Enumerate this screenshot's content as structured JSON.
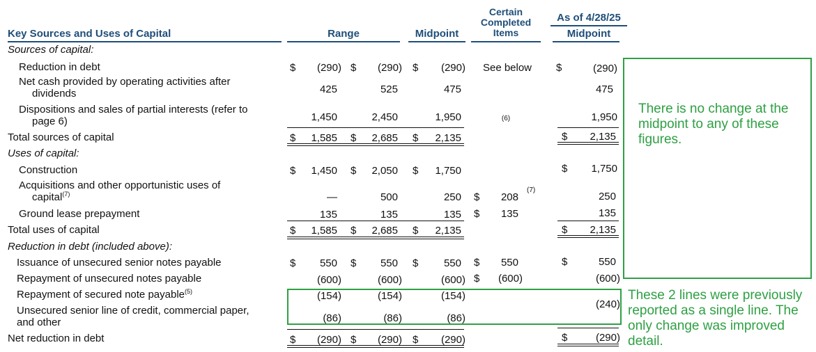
{
  "header": {
    "title": "Key Sources and Uses of Capital",
    "range": "Range",
    "midpoint": "Midpoint",
    "certain_l1": "Certain",
    "certain_l2": "Completed",
    "certain_l3": "Items",
    "asof": "As of 4/28/25",
    "asof_mid": "Midpoint"
  },
  "sections": {
    "sources": "Sources of capital:",
    "uses": "Uses of capital:",
    "reduction": "Reduction in debt (included above):"
  },
  "rows": {
    "red_debt": {
      "label": "Reduction in debt",
      "d1": "$",
      "low": "(290)",
      "d2": "$",
      "high": "(290)",
      "d3": "$",
      "mid": "(290)",
      "certain": "See below",
      "d5": "$",
      "asof": "(290)"
    },
    "net_cash": {
      "label1": "Net cash provided by operating activities after",
      "label2": "dividends",
      "low": "425",
      "high": "525",
      "mid": "475",
      "asof": "475"
    },
    "dispositions": {
      "label1": "Dispositions and sales of partial interests (refer to",
      "label2": "page 6)",
      "low": "1,450",
      "high": "2,450",
      "mid": "1,950",
      "certain_note": "(6)",
      "asof": "1,950"
    },
    "total_sources": {
      "label": "Total sources of capital",
      "d1": "$",
      "low": "1,585",
      "d2": "$",
      "high": "2,685",
      "d3": "$",
      "mid": "2,135",
      "d5": "$",
      "asof": "2,135"
    },
    "construction": {
      "label": "Construction",
      "d1": "$",
      "low": "1,450",
      "d2": "$",
      "high": "2,050",
      "d3": "$",
      "mid": "1,750",
      "d5": "$",
      "asof": "1,750"
    },
    "acquisitions": {
      "label1": "Acquisitions and other opportunistic uses of",
      "label2": "capital",
      "label_sup": "(7)",
      "low": "—",
      "high": "500",
      "mid": "250",
      "d4": "$",
      "certain": "208",
      "certain_sup": "(7)",
      "asof": "250"
    },
    "ground_lease": {
      "label": "Ground lease prepayment",
      "low": "135",
      "high": "135",
      "mid": "135",
      "d4": "$",
      "certain": "135",
      "asof": "135"
    },
    "total_uses": {
      "label": "Total uses of capital",
      "d1": "$",
      "low": "1,585",
      "d2": "$",
      "high": "2,685",
      "d3": "$",
      "mid": "2,135",
      "d5": "$",
      "asof": "2,135"
    },
    "issuance": {
      "label": "Issuance of unsecured senior notes payable",
      "d1": "$",
      "low": "550",
      "d2": "$",
      "high": "550",
      "d3": "$",
      "mid": "550",
      "d4": "$",
      "certain": "550",
      "d5": "$",
      "asof": "550"
    },
    "repayment_unsec": {
      "label": "Repayment of unsecured notes payable",
      "low": "(600)",
      "high": "(600)",
      "mid": "(600)",
      "d4": "$",
      "certain": "(600)",
      "asof": "(600)"
    },
    "repayment_sec": {
      "label": "Repayment of secured note payable",
      "label_sup": "(5)",
      "low": "(154)",
      "high": "(154)",
      "mid": "(154)"
    },
    "credit_line": {
      "label1": "Unsecured senior line of credit, commercial paper,",
      "label2": "and other",
      "low": "(86)",
      "high": "(86)",
      "mid": "(86)"
    },
    "combined_asof": "(240)",
    "net_reduction": {
      "label": "Net reduction in debt",
      "d1": "$",
      "low": "(290)",
      "d2": "$",
      "high": "(290)",
      "d3": "$",
      "mid": "(290)",
      "d5": "$",
      "asof": "(290)"
    }
  },
  "notes": {
    "no_change": "There is no change at the midpoint to any of these figures.",
    "two_lines": "These 2 lines were previously reported as a single line. The only change was improved detail."
  },
  "colors": {
    "header": "#1f4e79",
    "annotation": "#2ea043"
  }
}
